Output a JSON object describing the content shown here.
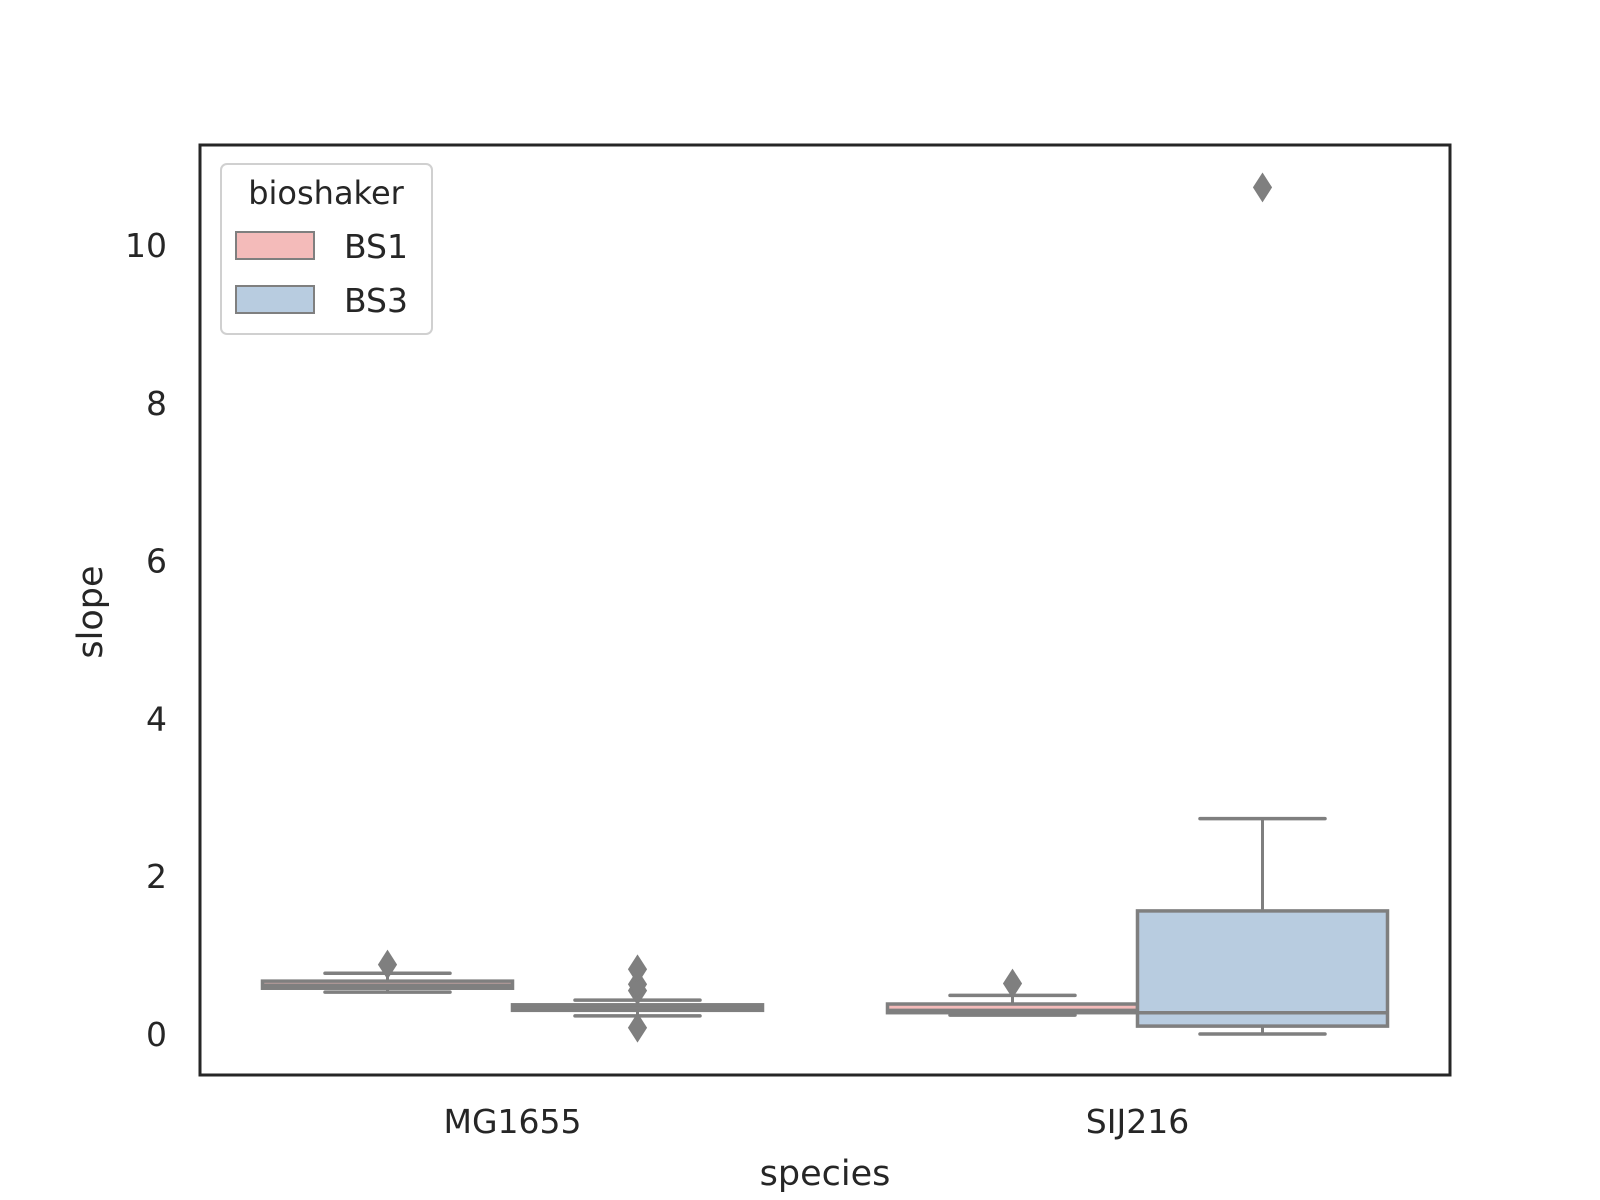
{
  "chart_data": {
    "type": "box",
    "title": "",
    "xlabel": "species",
    "ylabel": "slope",
    "categories": [
      "MG1655",
      "SIJ216"
    ],
    "ylim": [
      -0.5,
      11.3
    ],
    "yticks": [
      0,
      2,
      4,
      6,
      8,
      10
    ],
    "grid": false,
    "legend": {
      "title": "bioshaker",
      "placement": "top-left",
      "entries": [
        {
          "label": "BS1",
          "color": "#f4bbba"
        },
        {
          "label": "BS3",
          "color": "#b8cce0"
        }
      ]
    },
    "series": [
      {
        "name": "BS1",
        "color": "#f4bbba",
        "boxes": [
          {
            "category": "MG1655",
            "whisker_low": 0.53,
            "q1": 0.58,
            "median": 0.62,
            "q3": 0.67,
            "whisker_high": 0.77,
            "outliers": [
              0.88
            ]
          },
          {
            "category": "SIJ216",
            "whisker_low": 0.24,
            "q1": 0.27,
            "median": 0.3,
            "q3": 0.38,
            "whisker_high": 0.49,
            "outliers": [
              0.64
            ]
          }
        ]
      },
      {
        "name": "BS3",
        "color": "#b8cce0",
        "boxes": [
          {
            "category": "MG1655",
            "whisker_low": 0.23,
            "q1": 0.3,
            "median": 0.33,
            "q3": 0.37,
            "whisker_high": 0.43,
            "outliers": [
              0.08,
              0.55,
              0.63,
              0.82
            ]
          },
          {
            "category": "SIJ216",
            "whisker_low": 0.0,
            "q1": 0.1,
            "median": 0.27,
            "q3": 1.56,
            "whisker_high": 2.73,
            "outliers": [
              10.73
            ]
          }
        ]
      }
    ],
    "line_color": "#7f7f7f"
  }
}
